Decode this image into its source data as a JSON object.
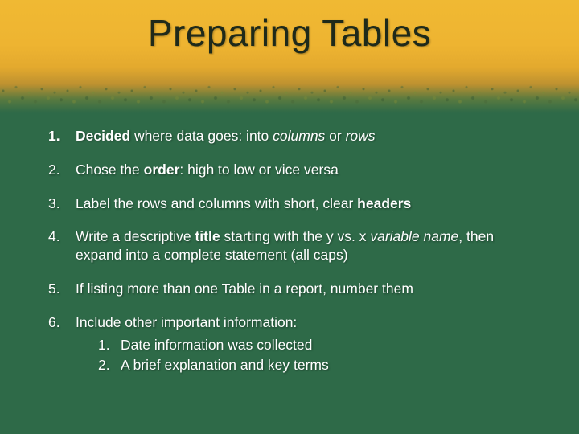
{
  "slide": {
    "title": "Preparing Tables",
    "colors": {
      "band_top": "#f0b933",
      "band_bottom": "#2e6a48",
      "body_bg": "#2e6a48",
      "title_color": "#1f2a1a",
      "text_color": "#ffffff"
    },
    "typography": {
      "title_fontsize": 46,
      "body_fontsize": 17.5
    },
    "items": [
      {
        "num": "1.",
        "lead_bold": "Decided",
        "mid": " where data goes:  into ",
        "tail_i1": "columns",
        "or": " or ",
        "tail_i2": "rows"
      },
      {
        "num": "2.",
        "pre": "Chose the ",
        "b": "order",
        "post": ":  high to low or vice versa"
      },
      {
        "num": "3.",
        "pre": "Label the rows and columns with short, clear ",
        "b": "headers",
        "post": ""
      },
      {
        "num": "4.",
        "pre": "Write a descriptive ",
        "b": "title",
        "mid": " starting with the y vs. x ",
        "i": "variable name",
        "post": ", then expand into a complete statement  (all caps)"
      },
      {
        "num": "5.",
        "text": "If listing more than one Table in a report, number them"
      },
      {
        "num": "6.",
        "text": "Include other important information:",
        "sub": [
          "Date information was collected",
          "A brief explanation and key terms"
        ]
      }
    ]
  }
}
